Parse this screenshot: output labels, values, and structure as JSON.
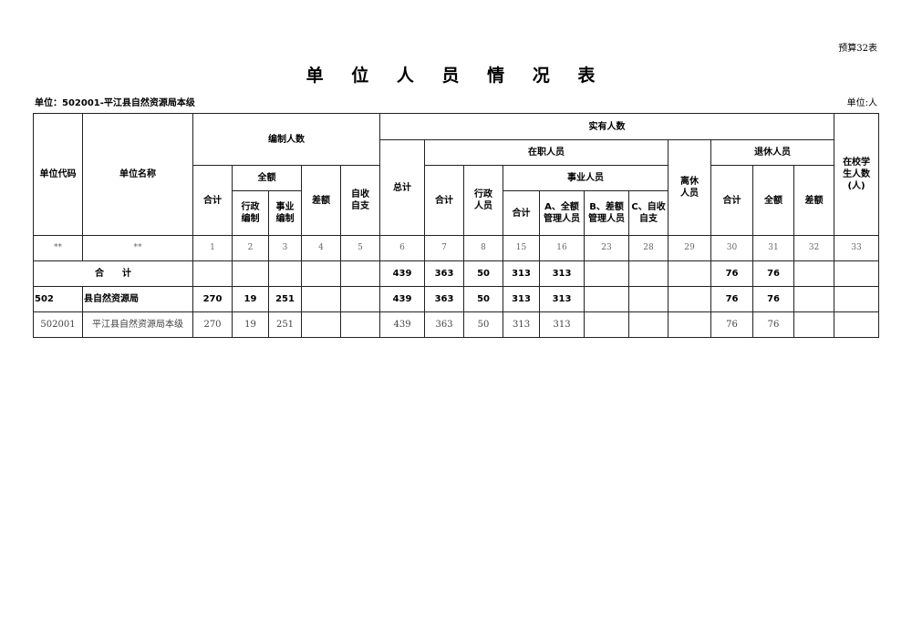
{
  "form_no": "预算32表",
  "title": "单 位 人 员 情 况 表",
  "unit": "单位：502001-平江县自然资源局本级",
  "unit_label": "单位:人",
  "headers": {
    "code": "单位代码",
    "name": "单位名称",
    "bianzhi": "编制人数",
    "shiyou": "实有人数",
    "student": "在校学生人数(人)",
    "bz_total": "合计",
    "bz_quane": "全额",
    "bz_admin": "行政编制",
    "bz_inst": "事业编制",
    "bz_chae": "差额",
    "bz_self": "自收自支",
    "sy_total": "总计",
    "zaizhi": "在职人员",
    "zz_total": "合计",
    "zz_admin": "行政人员",
    "shiye": "事业人员",
    "sy_sub_total": "合计",
    "sy_a": "A、全额管理人员",
    "sy_b": "B、差额管理人员",
    "sy_c": "C、自收自支",
    "lixiu": "离休人员",
    "tuixiu": "退休人员",
    "tx_total": "合计",
    "tx_quane": "全额",
    "tx_chae": "差额"
  },
  "index_row": [
    "**",
    "**",
    "1",
    "2",
    "3",
    "4",
    "5",
    "6",
    "7",
    "8",
    "15",
    "16",
    "23",
    "28",
    "29",
    "30",
    "31",
    "32",
    "33"
  ],
  "total_row": {
    "label": "合　　计",
    "values": [
      "",
      "",
      "",
      "",
      "",
      "439",
      "363",
      "50",
      "313",
      "313",
      "",
      "",
      "",
      "76",
      "76",
      "",
      ""
    ]
  },
  "rows": [
    {
      "style": "bold",
      "cells": [
        "502",
        "县自然资源局",
        "270",
        "19",
        "251",
        "",
        "",
        "439",
        "363",
        "50",
        "313",
        "313",
        "",
        "",
        "",
        "76",
        "76",
        "",
        ""
      ]
    },
    {
      "style": "plain",
      "cells": [
        "502001",
        "平江县自然资源局本级",
        "270",
        "19",
        "251",
        "",
        "",
        "439",
        "363",
        "50",
        "313",
        "313",
        "",
        "",
        "",
        "76",
        "76",
        "",
        ""
      ]
    }
  ]
}
